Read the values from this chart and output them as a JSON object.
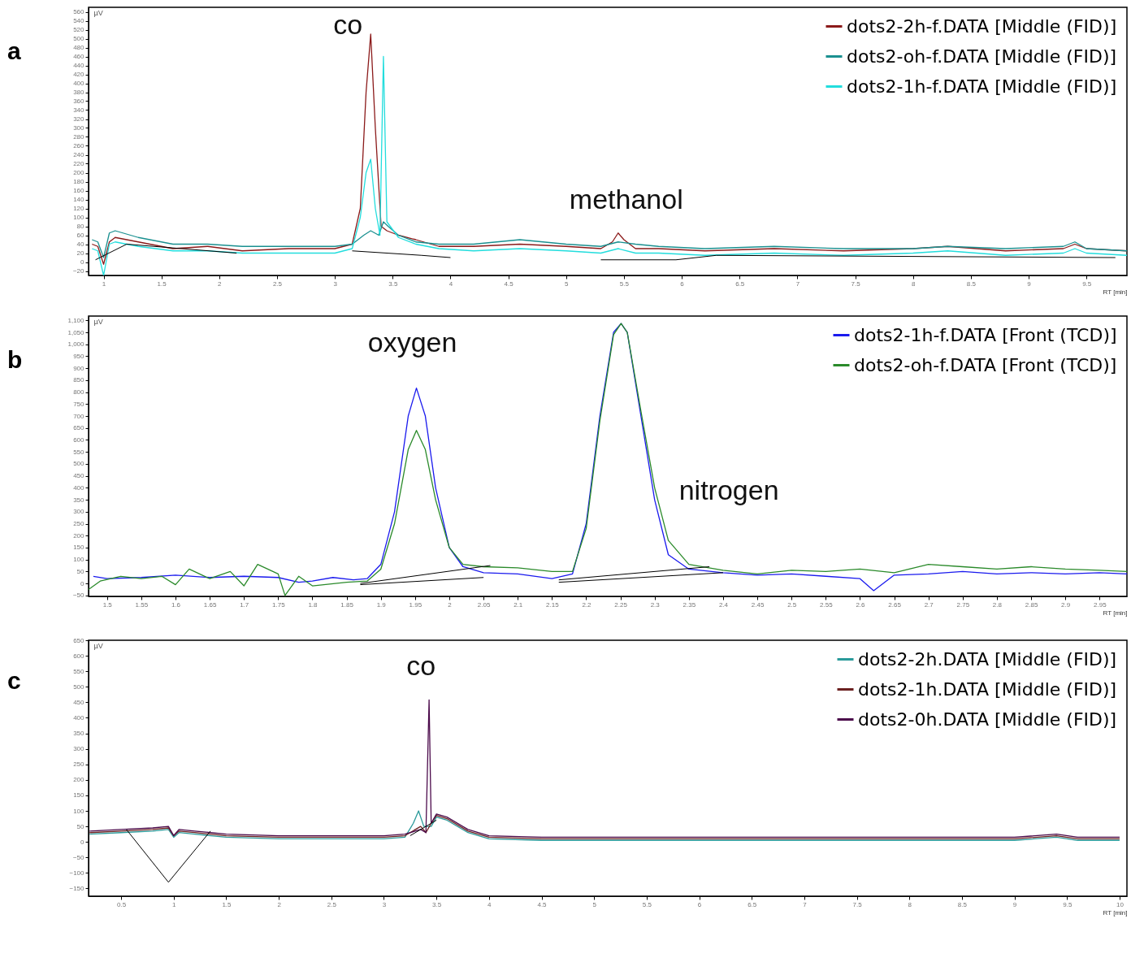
{
  "chart_data": [
    {
      "type": "line",
      "title": "a",
      "xlabel": "RT [min]",
      "ylabel": "µV",
      "xlim": [
        0.87,
        9.85
      ],
      "ylim": [
        -30,
        570
      ],
      "xticks": [
        1,
        1.5,
        2,
        2.5,
        3,
        3.5,
        4,
        4.5,
        5,
        5.5,
        6,
        6.5,
        7,
        7.5,
        8,
        8.5,
        9,
        9.5
      ],
      "yticks": [
        -20,
        0,
        20,
        40,
        60,
        80,
        100,
        120,
        140,
        160,
        180,
        200,
        220,
        240,
        260,
        280,
        300,
        320,
        340,
        360,
        380,
        400,
        420,
        440,
        460,
        480,
        500,
        520,
        540,
        560
      ],
      "grid": false,
      "legend": "top right",
      "marker": "none",
      "line_style": "solid",
      "annotations": [
        {
          "text": "co",
          "x": 3.31,
          "y": 510
        },
        {
          "text": "methanol",
          "x": 5.45,
          "y": 65
        }
      ],
      "series": [
        {
          "name": "dots2-2h-f.DATA [Middle (FID)]",
          "color": "#8b1a1a",
          "x": [
            0.9,
            0.95,
            1.0,
            1.05,
            1.1,
            1.3,
            1.6,
            1.9,
            2.2,
            2.6,
            3.0,
            3.15,
            3.22,
            3.27,
            3.31,
            3.35,
            3.4,
            3.45,
            3.55,
            3.7,
            3.9,
            4.2,
            4.6,
            5.0,
            5.3,
            5.4,
            5.45,
            5.5,
            5.6,
            5.8,
            6.2,
            6.8,
            7.4,
            8.0,
            8.3,
            8.8,
            9.3,
            9.4,
            9.5,
            9.85
          ],
          "values": [
            40,
            35,
            -5,
            45,
            55,
            45,
            30,
            35,
            25,
            30,
            30,
            40,
            120,
            380,
            510,
            300,
            80,
            70,
            60,
            50,
            35,
            35,
            40,
            35,
            30,
            45,
            65,
            50,
            30,
            30,
            25,
            30,
            25,
            30,
            35,
            25,
            30,
            40,
            30,
            25
          ]
        },
        {
          "name": "dots2-oh-f.DATA [Middle (FID)]",
          "color": "#1a9090",
          "x": [
            0.9,
            0.95,
            1.0,
            1.05,
            1.1,
            1.3,
            1.6,
            1.9,
            2.2,
            2.6,
            3.0,
            3.15,
            3.25,
            3.31,
            3.38,
            3.42,
            3.46,
            3.55,
            3.7,
            3.9,
            4.2,
            4.6,
            5.0,
            5.3,
            5.45,
            5.6,
            5.8,
            6.2,
            6.8,
            7.4,
            8.0,
            8.3,
            8.8,
            9.3,
            9.4,
            9.5,
            9.85
          ],
          "values": [
            50,
            45,
            10,
            65,
            70,
            55,
            40,
            40,
            35,
            35,
            35,
            40,
            60,
            70,
            60,
            90,
            80,
            60,
            45,
            40,
            40,
            50,
            40,
            35,
            45,
            40,
            35,
            30,
            35,
            30,
            30,
            35,
            30,
            35,
            45,
            30,
            25
          ]
        },
        {
          "name": "dots2-1h-f.DATA [Middle (FID)]",
          "color": "#22dddd",
          "x": [
            0.9,
            0.95,
            1.0,
            1.05,
            1.1,
            1.3,
            1.6,
            1.9,
            2.2,
            2.6,
            3.0,
            3.15,
            3.22,
            3.27,
            3.31,
            3.35,
            3.39,
            3.42,
            3.45,
            3.55,
            3.7,
            3.9,
            4.2,
            4.6,
            5.0,
            5.3,
            5.45,
            5.6,
            5.8,
            6.2,
            6.8,
            7.4,
            8.0,
            8.3,
            8.8,
            9.3,
            9.4,
            9.5,
            9.85
          ],
          "values": [
            30,
            25,
            -30,
            40,
            45,
            35,
            25,
            25,
            20,
            20,
            20,
            30,
            100,
            200,
            230,
            120,
            60,
            460,
            90,
            55,
            40,
            30,
            25,
            30,
            25,
            20,
            30,
            20,
            20,
            15,
            20,
            15,
            20,
            25,
            15,
            20,
            30,
            20,
            15
          ]
        },
        {
          "color": "#000000",
          "x": [
            0.93,
            1.2,
            2.15
          ],
          "values": [
            5,
            40,
            20
          ]
        },
        {
          "color": "#000000",
          "x": [
            3.15,
            3.75,
            4.0
          ],
          "values": [
            25,
            15,
            10
          ]
        },
        {
          "color": "#000000",
          "x": [
            5.3,
            5.95,
            6.3,
            9.75
          ],
          "values": [
            5,
            5,
            15,
            10
          ]
        }
      ]
    },
    {
      "type": "line",
      "title": "b",
      "xlabel": "RT [min]",
      "ylabel": "µV",
      "xlim": [
        1.473,
        2.99
      ],
      "ylim": [
        -54,
        1118
      ],
      "xticks": [
        1.5,
        1.55,
        1.6,
        1.65,
        1.7,
        1.75,
        1.8,
        1.85,
        1.9,
        1.95,
        2,
        2.05,
        2.1,
        2.15,
        2.2,
        2.25,
        2.3,
        2.35,
        2.4,
        2.45,
        2.5,
        2.55,
        2.6,
        2.65,
        2.7,
        2.75,
        2.8,
        2.85,
        2.9,
        2.95
      ],
      "yticks": [
        -50,
        0,
        50,
        100,
        150,
        200,
        250,
        300,
        350,
        400,
        450,
        500,
        550,
        600,
        650,
        700,
        750,
        800,
        850,
        900,
        950,
        {
          "value": 1000,
          "label": "1,000"
        },
        {
          "value": 1050,
          "label": "1,050"
        },
        {
          "value": 1100,
          "label": "1,100"
        }
      ],
      "grid": false,
      "legend": "top right",
      "marker": "none",
      "line_style": "solid",
      "annotations": [
        {
          "text": "oxygen",
          "x": 1.952,
          "y": 817
        },
        {
          "text": "nitrogen",
          "x": 2.3,
          "y": 400
        }
      ],
      "series": [
        {
          "name": "dots2-1h-f.DATA [Front (TCD)]",
          "color": "#1a1aee",
          "x": [
            1.48,
            1.5,
            1.55,
            1.6,
            1.65,
            1.7,
            1.75,
            1.78,
            1.8,
            1.83,
            1.86,
            1.88,
            1.9,
            1.92,
            1.94,
            1.952,
            1.965,
            1.98,
            2.0,
            2.02,
            2.05,
            2.1,
            2.15,
            2.18,
            2.2,
            2.22,
            2.24,
            2.251,
            2.26,
            2.28,
            2.3,
            2.32,
            2.35,
            2.4,
            2.45,
            2.5,
            2.55,
            2.6,
            2.62,
            2.65,
            2.7,
            2.75,
            2.8,
            2.85,
            2.9,
            2.95,
            2.99
          ],
          "values": [
            30,
            20,
            25,
            35,
            25,
            30,
            25,
            5,
            10,
            25,
            15,
            20,
            80,
            300,
            700,
            817,
            700,
            400,
            150,
            70,
            45,
            40,
            20,
            40,
            250,
            700,
            1050,
            1087,
            1050,
            700,
            350,
            120,
            60,
            45,
            35,
            40,
            30,
            20,
            -30,
            35,
            40,
            50,
            40,
            45,
            40,
            45,
            40
          ]
        },
        {
          "name": "dots2-oh-f.DATA [Front (TCD)]",
          "color": "#2a8a2a",
          "x": [
            1.473,
            1.49,
            1.52,
            1.55,
            1.58,
            1.6,
            1.62,
            1.65,
            1.68,
            1.7,
            1.72,
            1.75,
            1.76,
            1.78,
            1.8,
            1.85,
            1.88,
            1.9,
            1.92,
            1.94,
            1.952,
            1.965,
            1.98,
            2.0,
            2.02,
            2.05,
            2.1,
            2.15,
            2.18,
            2.2,
            2.22,
            2.24,
            2.251,
            2.26,
            2.28,
            2.3,
            2.32,
            2.35,
            2.4,
            2.45,
            2.5,
            2.55,
            2.6,
            2.65,
            2.7,
            2.75,
            2.8,
            2.85,
            2.9,
            2.95,
            2.99
          ],
          "values": [
            -25,
            10,
            30,
            20,
            30,
            -5,
            60,
            20,
            50,
            -10,
            80,
            40,
            -50,
            30,
            -10,
            5,
            10,
            60,
            250,
            560,
            640,
            560,
            350,
            150,
            80,
            70,
            65,
            50,
            50,
            230,
            680,
            1040,
            1087,
            1050,
            720,
            400,
            180,
            80,
            55,
            40,
            55,
            50,
            60,
            45,
            80,
            70,
            60,
            70,
            60,
            55,
            50
          ]
        },
        {
          "color": "#000000",
          "x": [
            1.87,
            2.06
          ],
          "values": [
            0,
            75
          ]
        },
        {
          "color": "#000000",
          "x": [
            1.87,
            2.05
          ],
          "values": [
            -5,
            25
          ]
        },
        {
          "color": "#000000",
          "x": [
            2.16,
            2.38
          ],
          "values": [
            15,
            70
          ]
        },
        {
          "color": "#000000",
          "x": [
            2.16,
            2.4
          ],
          "values": [
            5,
            45
          ]
        }
      ]
    },
    {
      "type": "line",
      "title": "c",
      "xlabel": "RT [min]",
      "ylabel": "µV",
      "xlim": [
        0.19,
        10.07
      ],
      "ylim": [
        -175,
        650
      ],
      "xticks": [
        0.5,
        1,
        1.5,
        2,
        2.5,
        3,
        3.5,
        4,
        4.5,
        5,
        5.5,
        6,
        6.5,
        7,
        7.5,
        8,
        8.5,
        9,
        9.5,
        10
      ],
      "yticks": [
        -150,
        -100,
        -50,
        0,
        50,
        100,
        150,
        200,
        250,
        300,
        350,
        400,
        450,
        500,
        550,
        600,
        650
      ],
      "grid": false,
      "legend": "top right",
      "marker": "none",
      "line_style": "solid",
      "annotations": [
        {
          "text": "co",
          "x": 3.43,
          "y": 458
        }
      ],
      "series": [
        {
          "name": "dots2-2h.DATA [Middle (FID)]",
          "color": "#2a9a9a",
          "x": [
            0.2,
            0.5,
            0.8,
            0.95,
            1.0,
            1.05,
            1.2,
            1.5,
            2.0,
            2.5,
            3.0,
            3.2,
            3.28,
            3.33,
            3.38,
            3.45,
            3.5,
            3.6,
            3.8,
            4.0,
            4.5,
            5,
            6,
            7,
            8,
            9,
            9.4,
            9.6,
            10
          ],
          "values": [
            25,
            30,
            35,
            40,
            15,
            30,
            25,
            15,
            10,
            10,
            10,
            15,
            60,
            100,
            50,
            50,
            80,
            70,
            30,
            10,
            5,
            5,
            5,
            5,
            5,
            5,
            15,
            5,
            5
          ]
        },
        {
          "name": "dots2-1h.DATA [Middle (FID)]",
          "color": "#6b2020",
          "x": [
            0.2,
            0.5,
            0.8,
            0.95,
            1.0,
            1.05,
            1.2,
            1.5,
            2.0,
            2.5,
            3.0,
            3.2,
            3.3,
            3.35,
            3.4,
            3.45,
            3.5,
            3.6,
            3.8,
            4.0,
            4.5,
            5,
            6,
            7,
            8,
            9,
            9.4,
            9.6,
            10
          ],
          "values": [
            30,
            35,
            40,
            45,
            20,
            35,
            30,
            20,
            15,
            15,
            15,
            20,
            40,
            50,
            30,
            60,
            85,
            75,
            35,
            15,
            10,
            10,
            10,
            10,
            10,
            10,
            20,
            10,
            10
          ]
        },
        {
          "name": "dots2-0h.DATA [Middle (FID)]",
          "color": "#4b0a4b",
          "x": [
            0.2,
            0.5,
            0.8,
            0.95,
            1.0,
            1.05,
            1.2,
            1.5,
            2.0,
            2.5,
            3.0,
            3.2,
            3.35,
            3.4,
            3.43,
            3.45,
            3.5,
            3.6,
            3.8,
            4.0,
            4.5,
            5,
            6,
            7,
            8,
            9,
            9.4,
            9.6,
            10
          ],
          "values": [
            35,
            40,
            45,
            50,
            20,
            40,
            35,
            25,
            20,
            20,
            20,
            25,
            40,
            30,
            458,
            60,
            90,
            80,
            40,
            20,
            15,
            15,
            15,
            15,
            15,
            15,
            25,
            15,
            15
          ]
        },
        {
          "color": "#000000",
          "x": [
            0.55,
            0.95,
            1.35
          ],
          "values": [
            40,
            -130,
            35
          ]
        },
        {
          "color": "#000000",
          "x": [
            3.25,
            3.5
          ],
          "values": [
            20,
            70
          ]
        }
      ]
    }
  ]
}
